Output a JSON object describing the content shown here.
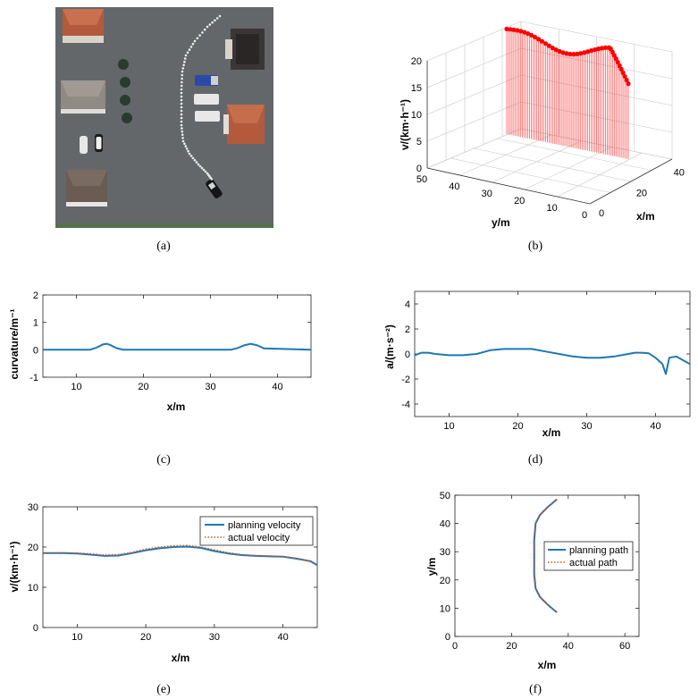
{
  "colors": {
    "planning": "#1f77b4",
    "actual": "#d95319",
    "velocity3d": "#ff0000",
    "ground": "#606466",
    "roof": "#b35a3c"
  },
  "captions": [
    "(a)",
    "(b)",
    "(c)",
    "(d)",
    "(e)",
    "(f)"
  ],
  "chart_data": [
    {
      "id": "a",
      "type": "other",
      "description_icons": [
        "building-icon",
        "tree-icon",
        "car-icon",
        "truck-icon",
        "planned-path-dots"
      ]
    },
    {
      "id": "b",
      "type": "line",
      "xlabel": "x/m",
      "ylabel": "y/m",
      "zlabel": "v/(km·h⁻¹)",
      "x_ticks": [
        "0",
        "20",
        "40"
      ],
      "y_ticks": [
        "50",
        "40",
        "30",
        "20",
        "10",
        "0"
      ],
      "z_ticks": [
        "0",
        "5",
        "10",
        "15",
        "20"
      ],
      "zlim": [
        0,
        20
      ],
      "grid": true,
      "note": "velocity stems along path, y from 50 to 0"
    },
    {
      "id": "c",
      "type": "line",
      "xlabel": "x/m",
      "ylabel": "curvature/m⁻¹",
      "xlim": [
        5,
        45
      ],
      "ylim": [
        -1,
        2
      ],
      "x_ticks": [
        "10",
        "20",
        "30",
        "40"
      ],
      "y_ticks": [
        "-1",
        "0",
        "1",
        "2"
      ],
      "series": [
        {
          "x": [
            5,
            12,
            13,
            14,
            14.5,
            15,
            16,
            17,
            33,
            34,
            35,
            36,
            37,
            38,
            45
          ],
          "values": [
            0,
            0,
            0.08,
            0.2,
            0.22,
            0.18,
            0.06,
            0,
            0,
            0.06,
            0.16,
            0.22,
            0.16,
            0.05,
            0
          ]
        }
      ]
    },
    {
      "id": "d",
      "type": "line",
      "xlabel": "x/m",
      "ylabel": "a/(m·s⁻²)",
      "xlim": [
        5,
        45
      ],
      "ylim": [
        -5,
        5
      ],
      "x_ticks": [
        "10",
        "20",
        "30",
        "40"
      ],
      "y_ticks": [
        "-4",
        "-2",
        "0",
        "2",
        "4"
      ],
      "series": [
        {
          "x": [
            5,
            6,
            7,
            8,
            10,
            12,
            14,
            16,
            18,
            20,
            22,
            24,
            26,
            28,
            30,
            32,
            34,
            36,
            37,
            38,
            39,
            40,
            41,
            41.5,
            42,
            43,
            44,
            45
          ],
          "values": [
            -0.1,
            0.1,
            0.1,
            0,
            -0.1,
            -0.1,
            0,
            0.3,
            0.4,
            0.4,
            0.4,
            0.2,
            0,
            -0.2,
            -0.3,
            -0.3,
            -0.2,
            0,
            0.1,
            0.1,
            0.05,
            -0.3,
            -0.8,
            -1.6,
            -0.3,
            -0.2,
            -0.5,
            -0.8
          ]
        }
      ]
    },
    {
      "id": "e",
      "type": "line",
      "xlabel": "x/m",
      "ylabel": "v/(km·h⁻¹)",
      "xlim": [
        5,
        45
      ],
      "ylim": [
        0,
        30
      ],
      "x_ticks": [
        "10",
        "20",
        "30",
        "40"
      ],
      "y_ticks": [
        "0",
        "10",
        "20",
        "30"
      ],
      "legend": "top-right",
      "series": [
        {
          "name": "planning velocity",
          "x": [
            5,
            8,
            10,
            12,
            14,
            16,
            18,
            20,
            22,
            24,
            26,
            28,
            30,
            32,
            34,
            36,
            38,
            40,
            42,
            44,
            45
          ],
          "values": [
            18.5,
            18.5,
            18.4,
            18.1,
            17.8,
            17.9,
            18.5,
            19.2,
            19.7,
            20.0,
            20.1,
            19.8,
            19.0,
            18.4,
            18.0,
            17.8,
            17.7,
            17.6,
            17.1,
            16.5,
            15.5
          ]
        },
        {
          "name": "actual velocity",
          "x": [
            5,
            8,
            10,
            12,
            14,
            16,
            18,
            20,
            22,
            24,
            26,
            28,
            30,
            32,
            34,
            36,
            38,
            40,
            42,
            44,
            45
          ],
          "values": [
            18.4,
            18.6,
            18.5,
            18.3,
            18.0,
            18.1,
            18.7,
            19.5,
            20.0,
            20.3,
            20.4,
            20.0,
            19.3,
            18.6,
            18.1,
            17.9,
            17.8,
            17.6,
            17.2,
            16.4,
            15.4
          ]
        }
      ]
    },
    {
      "id": "f",
      "type": "line",
      "xlabel": "x/m",
      "ylabel": "y/m",
      "xlim": [
        0,
        65
      ],
      "ylim": [
        0,
        50
      ],
      "x_ticks": [
        "0",
        "20",
        "40",
        "60"
      ],
      "y_ticks": [
        "0",
        "10",
        "20",
        "30",
        "40",
        "50"
      ],
      "legend": "top-right",
      "series": [
        {
          "name": "planning path",
          "x": [
            36,
            33,
            30,
            28.5,
            28,
            28,
            28,
            28.5,
            30,
            33,
            36
          ],
          "values": [
            8.5,
            11,
            14,
            17,
            22,
            28,
            34,
            40,
            43,
            46,
            48.5
          ]
        },
        {
          "name": "actual path",
          "x": [
            36,
            33,
            30.2,
            28.6,
            28.1,
            28.1,
            28.1,
            28.6,
            30.2,
            33,
            36
          ],
          "values": [
            8.5,
            11,
            14,
            17,
            22,
            28,
            34,
            40,
            43,
            46,
            48.5
          ]
        }
      ]
    }
  ]
}
